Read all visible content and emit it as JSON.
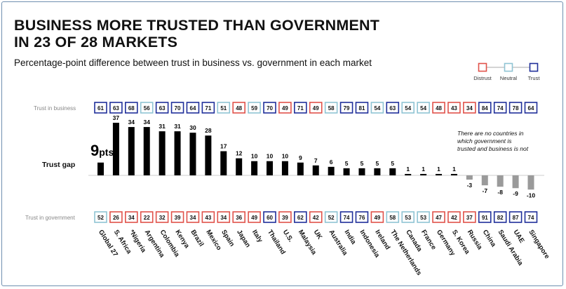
{
  "title_line1": "BUSINESS MORE TRUSTED THAN GOVERNMENT",
  "title_line2": "IN 23 OF 28 MARKETS",
  "subtitle": "Percentage-point difference between trust in business vs. government in each market",
  "legend": {
    "items": [
      {
        "label": "Distrust",
        "color": "#e0524a"
      },
      {
        "label": "Neutral",
        "color": "#8fc4d4"
      },
      {
        "label": "Trust",
        "color": "#1f2f9a"
      }
    ]
  },
  "row_labels": {
    "business": "Trust in business",
    "gap": "Trust gap",
    "government": "Trust in government"
  },
  "global_callout": {
    "value": "9",
    "unit": "pts"
  },
  "annotation": [
    "There are no countries in",
    "which government is",
    "trusted and business is not"
  ],
  "colors": {
    "bar_positive": "#000000",
    "bar_negative": "#9a9a9a",
    "distrust": "#e0524a",
    "neutral": "#8fc4d4",
    "trust": "#1f2f9a"
  },
  "chart_data": {
    "type": "bar",
    "categories": [
      "Global 27",
      "S. Africa",
      "*Nigeria",
      "Argentina",
      "Colombia",
      "Kenya",
      "Brazil",
      "Mexico",
      "Spain",
      "Japan",
      "Italy",
      "Thailand",
      "U.S.",
      "Malaysia",
      "UK",
      "Australia",
      "India",
      "Indonesia",
      "Ireland",
      "The Netherlands",
      "Canada",
      "France",
      "Germany",
      "S. Korea",
      "Russia",
      "China",
      "Saudi Arabia",
      "UAE",
      "Singapore"
    ],
    "trust_gap": [
      9,
      37,
      34,
      34,
      31,
      31,
      30,
      28,
      17,
      12,
      10,
      10,
      10,
      9,
      7,
      6,
      5,
      5,
      5,
      5,
      1,
      1,
      1,
      1,
      -3,
      -7,
      -8,
      -9,
      -10
    ],
    "trust_gap_labels": [
      "9",
      "37",
      "34",
      "34",
      "31",
      "31",
      "30",
      "28",
      "17",
      "12",
      "10",
      "10",
      "10",
      "9",
      "7",
      "6",
      "5",
      "5",
      "5",
      "5",
      "1",
      "1",
      "1",
      "1",
      "-3",
      "-7",
      "-8",
      "-9",
      "-10"
    ],
    "trust_in_business": [
      61,
      63,
      68,
      56,
      63,
      70,
      64,
      71,
      51,
      48,
      59,
      70,
      49,
      71,
      49,
      58,
      79,
      81,
      54,
      63,
      54,
      54,
      48,
      43,
      34,
      84,
      74,
      78,
      64
    ],
    "trust_in_government": [
      52,
      26,
      34,
      22,
      32,
      39,
      34,
      43,
      34,
      36,
      49,
      60,
      39,
      62,
      42,
      52,
      74,
      76,
      49,
      58,
      53,
      53,
      47,
      42,
      37,
      91,
      82,
      87,
      74
    ],
    "business_status": [
      "trust",
      "trust",
      "trust",
      "neutral",
      "trust",
      "trust",
      "trust",
      "trust",
      "neutral",
      "distrust",
      "neutral",
      "trust",
      "distrust",
      "trust",
      "distrust",
      "neutral",
      "trust",
      "trust",
      "neutral",
      "trust",
      "neutral",
      "neutral",
      "distrust",
      "distrust",
      "distrust",
      "trust",
      "trust",
      "trust",
      "trust"
    ],
    "government_status": [
      "neutral",
      "distrust",
      "distrust",
      "distrust",
      "distrust",
      "distrust",
      "distrust",
      "distrust",
      "distrust",
      "distrust",
      "distrust",
      "trust",
      "distrust",
      "trust",
      "distrust",
      "neutral",
      "trust",
      "trust",
      "distrust",
      "neutral",
      "neutral",
      "neutral",
      "distrust",
      "distrust",
      "distrust",
      "trust",
      "trust",
      "trust",
      "trust"
    ],
    "ylim": [
      -10,
      37
    ]
  }
}
